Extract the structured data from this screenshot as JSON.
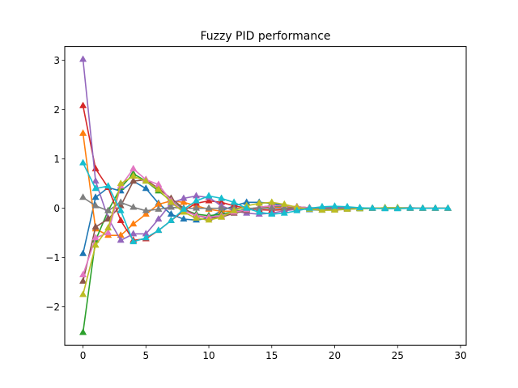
{
  "chart_data": {
    "type": "line",
    "title": "Fuzzy PID performance",
    "xlabel": "",
    "ylabel": "",
    "xlim": [
      -1.45,
      30.45
    ],
    "ylim": [
      -2.78,
      3.28
    ],
    "xticks": [
      0,
      5,
      10,
      15,
      20,
      25,
      30
    ],
    "yticks": [
      -2,
      -1,
      0,
      1,
      2,
      3
    ],
    "ytick_labels": [
      "−2",
      "−1",
      "0",
      "1",
      "2",
      "3"
    ],
    "grid": false,
    "marker": "triangle-up",
    "x": [
      0,
      1,
      2,
      3,
      4,
      5,
      6,
      7,
      8,
      9,
      10,
      11,
      12,
      13,
      14,
      15,
      16,
      17,
      18,
      19,
      20,
      21,
      22,
      23,
      24,
      25,
      26,
      27,
      28,
      29
    ],
    "series": [
      {
        "color": "#1f77b4",
        "values": [
          -0.92,
          0.22,
          0.42,
          0.35,
          0.55,
          0.4,
          0.1,
          -0.12,
          -0.22,
          -0.24,
          -0.2,
          -0.05,
          0.05,
          0.12,
          0.12,
          0.1,
          0.05,
          0.0,
          -0.03,
          -0.04,
          -0.03,
          -0.02,
          -0.01,
          0.0,
          0.01,
          0.01,
          0.01,
          0.0,
          0.0,
          0.0
        ]
      },
      {
        "color": "#ff7f0e",
        "values": [
          1.52,
          -0.42,
          -0.55,
          -0.55,
          -0.32,
          -0.12,
          0.08,
          0.15,
          0.12,
          0.05,
          -0.02,
          -0.06,
          -0.06,
          -0.03,
          0.0,
          0.02,
          0.02,
          0.01,
          0.0,
          -0.01,
          -0.01,
          0.0,
          0.0,
          0.0,
          0.0,
          0.0,
          0.0,
          0.0,
          0.0,
          0.0
        ]
      },
      {
        "color": "#2ca02c",
        "values": [
          -2.52,
          -0.65,
          -0.05,
          0.42,
          0.7,
          0.55,
          0.35,
          0.15,
          -0.02,
          -0.12,
          -0.15,
          -0.12,
          -0.07,
          -0.02,
          0.02,
          0.04,
          0.04,
          0.03,
          0.01,
          0.0,
          -0.01,
          -0.01,
          -0.01,
          0.0,
          0.0,
          0.0,
          0.0,
          0.0,
          0.0,
          0.0
        ]
      },
      {
        "color": "#d62728",
        "values": [
          2.08,
          0.8,
          0.42,
          -0.25,
          -0.65,
          -0.62,
          -0.45,
          -0.25,
          -0.05,
          0.1,
          0.15,
          0.12,
          0.05,
          0.0,
          -0.03,
          -0.04,
          -0.03,
          -0.02,
          0.0,
          0.01,
          0.01,
          0.01,
          0.0,
          0.0,
          0.0,
          0.0,
          0.0,
          0.0,
          0.0,
          0.0
        ]
      },
      {
        "color": "#9467bd",
        "values": [
          3.02,
          0.55,
          -0.2,
          -0.65,
          -0.52,
          -0.52,
          -0.22,
          0.1,
          0.2,
          0.25,
          0.22,
          0.05,
          -0.05,
          -0.1,
          -0.12,
          -0.1,
          -0.05,
          -0.02,
          0.0,
          0.02,
          0.03,
          0.02,
          0.01,
          0.0,
          0.0,
          0.0,
          0.0,
          0.0,
          0.0,
          0.0
        ]
      },
      {
        "color": "#8c564b",
        "values": [
          -1.48,
          -0.38,
          -0.22,
          0.05,
          0.55,
          0.58,
          0.4,
          0.2,
          0.0,
          -0.15,
          -0.2,
          -0.18,
          -0.1,
          -0.05,
          0.02,
          0.05,
          0.05,
          0.03,
          0.01,
          0.0,
          -0.01,
          -0.01,
          0.0,
          0.0,
          0.0,
          0.0,
          0.0,
          0.0,
          0.0,
          0.0
        ]
      },
      {
        "color": "#e377c2",
        "values": [
          -1.35,
          -0.6,
          -0.5,
          0.45,
          0.8,
          0.58,
          0.48,
          0.15,
          -0.05,
          -0.15,
          -0.18,
          -0.15,
          -0.08,
          -0.03,
          0.02,
          0.05,
          0.05,
          0.03,
          0.01,
          0.0,
          -0.01,
          -0.01,
          0.0,
          0.0,
          0.0,
          0.0,
          0.0,
          0.0,
          0.0,
          0.0
        ]
      },
      {
        "color": "#7f7f7f",
        "values": [
          0.22,
          0.05,
          -0.05,
          0.12,
          0.02,
          -0.05,
          -0.02,
          0.02,
          0.0,
          0.0,
          0.0,
          0.0,
          0.0,
          0.0,
          0.0,
          0.0,
          0.0,
          0.0,
          0.0,
          0.0,
          0.0,
          0.0,
          0.0,
          0.0,
          0.0,
          0.0,
          0.0,
          0.0,
          0.0,
          0.0
        ]
      },
      {
        "color": "#bcbd22",
        "values": [
          -1.75,
          -0.75,
          -0.4,
          0.5,
          0.65,
          0.55,
          0.38,
          0.12,
          -0.08,
          -0.2,
          -0.24,
          -0.18,
          -0.05,
          0.05,
          0.1,
          0.12,
          0.08,
          0.02,
          -0.02,
          -0.04,
          -0.04,
          -0.02,
          -0.01,
          0.0,
          0.01,
          0.01,
          0.0,
          0.0,
          0.0,
          0.0
        ]
      },
      {
        "color": "#17becf",
        "values": [
          0.92,
          0.4,
          0.45,
          -0.05,
          -0.68,
          -0.6,
          -0.45,
          -0.25,
          -0.02,
          0.15,
          0.25,
          0.2,
          0.12,
          0.0,
          -0.08,
          -0.12,
          -0.1,
          -0.05,
          0.0,
          0.03,
          0.04,
          0.03,
          0.01,
          0.0,
          -0.01,
          -0.01,
          0.0,
          0.0,
          0.0,
          0.0
        ]
      }
    ]
  }
}
